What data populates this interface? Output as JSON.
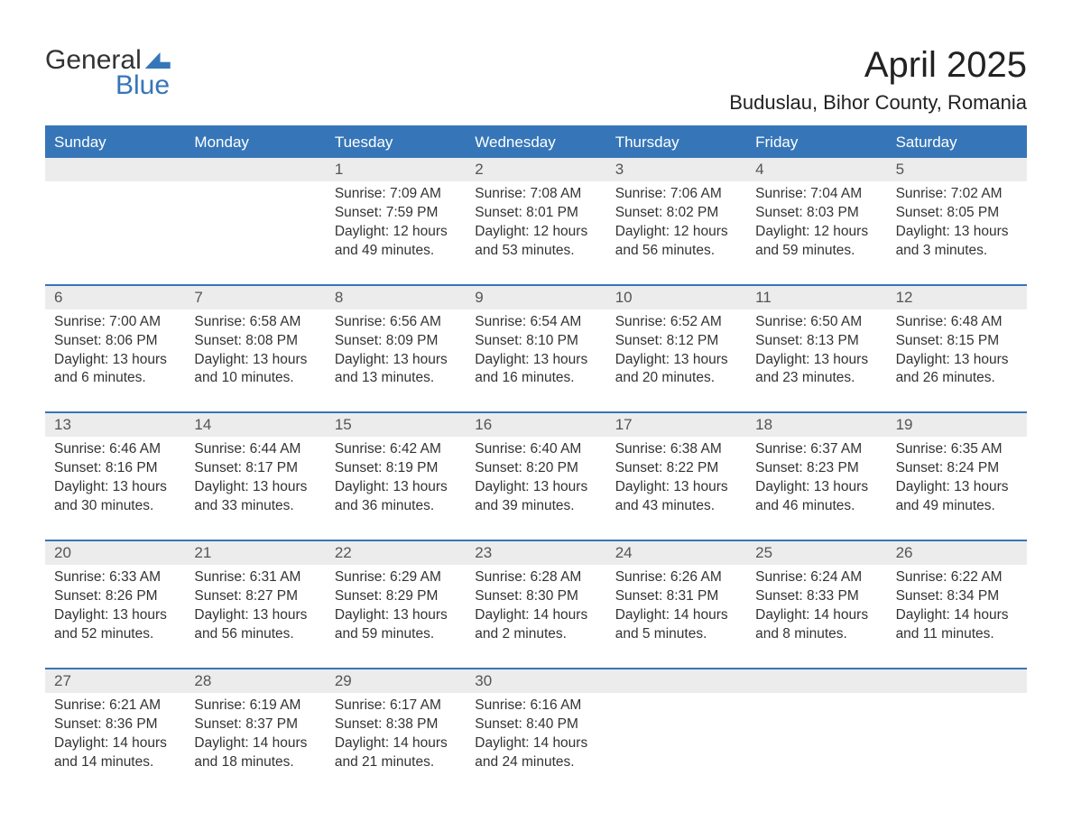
{
  "logo": {
    "word1": "General",
    "word2": "Blue"
  },
  "title": "April 2025",
  "location": "Buduslau, Bihor County, Romania",
  "colors": {
    "header_bg": "#3676b8",
    "header_text": "#ffffff",
    "daynum_bg": "#ececec",
    "body_text": "#333333",
    "page_bg": "#ffffff"
  },
  "fonts": {
    "title_size_pt": 40,
    "location_size_pt": 22,
    "weekday_size_pt": 17,
    "cell_size_pt": 15.5
  },
  "weekdays": [
    "Sunday",
    "Monday",
    "Tuesday",
    "Wednesday",
    "Thursday",
    "Friday",
    "Saturday"
  ],
  "weeks": [
    {
      "days": [
        {
          "num": "",
          "lines": []
        },
        {
          "num": "",
          "lines": []
        },
        {
          "num": "1",
          "lines": [
            "Sunrise: 7:09 AM",
            "Sunset: 7:59 PM",
            "Daylight: 12 hours",
            "and 49 minutes."
          ]
        },
        {
          "num": "2",
          "lines": [
            "Sunrise: 7:08 AM",
            "Sunset: 8:01 PM",
            "Daylight: 12 hours",
            "and 53 minutes."
          ]
        },
        {
          "num": "3",
          "lines": [
            "Sunrise: 7:06 AM",
            "Sunset: 8:02 PM",
            "Daylight: 12 hours",
            "and 56 minutes."
          ]
        },
        {
          "num": "4",
          "lines": [
            "Sunrise: 7:04 AM",
            "Sunset: 8:03 PM",
            "Daylight: 12 hours",
            "and 59 minutes."
          ]
        },
        {
          "num": "5",
          "lines": [
            "Sunrise: 7:02 AM",
            "Sunset: 8:05 PM",
            "Daylight: 13 hours",
            "and 3 minutes."
          ]
        }
      ]
    },
    {
      "days": [
        {
          "num": "6",
          "lines": [
            "Sunrise: 7:00 AM",
            "Sunset: 8:06 PM",
            "Daylight: 13 hours",
            "and 6 minutes."
          ]
        },
        {
          "num": "7",
          "lines": [
            "Sunrise: 6:58 AM",
            "Sunset: 8:08 PM",
            "Daylight: 13 hours",
            "and 10 minutes."
          ]
        },
        {
          "num": "8",
          "lines": [
            "Sunrise: 6:56 AM",
            "Sunset: 8:09 PM",
            "Daylight: 13 hours",
            "and 13 minutes."
          ]
        },
        {
          "num": "9",
          "lines": [
            "Sunrise: 6:54 AM",
            "Sunset: 8:10 PM",
            "Daylight: 13 hours",
            "and 16 minutes."
          ]
        },
        {
          "num": "10",
          "lines": [
            "Sunrise: 6:52 AM",
            "Sunset: 8:12 PM",
            "Daylight: 13 hours",
            "and 20 minutes."
          ]
        },
        {
          "num": "11",
          "lines": [
            "Sunrise: 6:50 AM",
            "Sunset: 8:13 PM",
            "Daylight: 13 hours",
            "and 23 minutes."
          ]
        },
        {
          "num": "12",
          "lines": [
            "Sunrise: 6:48 AM",
            "Sunset: 8:15 PM",
            "Daylight: 13 hours",
            "and 26 minutes."
          ]
        }
      ]
    },
    {
      "days": [
        {
          "num": "13",
          "lines": [
            "Sunrise: 6:46 AM",
            "Sunset: 8:16 PM",
            "Daylight: 13 hours",
            "and 30 minutes."
          ]
        },
        {
          "num": "14",
          "lines": [
            "Sunrise: 6:44 AM",
            "Sunset: 8:17 PM",
            "Daylight: 13 hours",
            "and 33 minutes."
          ]
        },
        {
          "num": "15",
          "lines": [
            "Sunrise: 6:42 AM",
            "Sunset: 8:19 PM",
            "Daylight: 13 hours",
            "and 36 minutes."
          ]
        },
        {
          "num": "16",
          "lines": [
            "Sunrise: 6:40 AM",
            "Sunset: 8:20 PM",
            "Daylight: 13 hours",
            "and 39 minutes."
          ]
        },
        {
          "num": "17",
          "lines": [
            "Sunrise: 6:38 AM",
            "Sunset: 8:22 PM",
            "Daylight: 13 hours",
            "and 43 minutes."
          ]
        },
        {
          "num": "18",
          "lines": [
            "Sunrise: 6:37 AM",
            "Sunset: 8:23 PM",
            "Daylight: 13 hours",
            "and 46 minutes."
          ]
        },
        {
          "num": "19",
          "lines": [
            "Sunrise: 6:35 AM",
            "Sunset: 8:24 PM",
            "Daylight: 13 hours",
            "and 49 minutes."
          ]
        }
      ]
    },
    {
      "days": [
        {
          "num": "20",
          "lines": [
            "Sunrise: 6:33 AM",
            "Sunset: 8:26 PM",
            "Daylight: 13 hours",
            "and 52 minutes."
          ]
        },
        {
          "num": "21",
          "lines": [
            "Sunrise: 6:31 AM",
            "Sunset: 8:27 PM",
            "Daylight: 13 hours",
            "and 56 minutes."
          ]
        },
        {
          "num": "22",
          "lines": [
            "Sunrise: 6:29 AM",
            "Sunset: 8:29 PM",
            "Daylight: 13 hours",
            "and 59 minutes."
          ]
        },
        {
          "num": "23",
          "lines": [
            "Sunrise: 6:28 AM",
            "Sunset: 8:30 PM",
            "Daylight: 14 hours",
            "and 2 minutes."
          ]
        },
        {
          "num": "24",
          "lines": [
            "Sunrise: 6:26 AM",
            "Sunset: 8:31 PM",
            "Daylight: 14 hours",
            "and 5 minutes."
          ]
        },
        {
          "num": "25",
          "lines": [
            "Sunrise: 6:24 AM",
            "Sunset: 8:33 PM",
            "Daylight: 14 hours",
            "and 8 minutes."
          ]
        },
        {
          "num": "26",
          "lines": [
            "Sunrise: 6:22 AM",
            "Sunset: 8:34 PM",
            "Daylight: 14 hours",
            "and 11 minutes."
          ]
        }
      ]
    },
    {
      "days": [
        {
          "num": "27",
          "lines": [
            "Sunrise: 6:21 AM",
            "Sunset: 8:36 PM",
            "Daylight: 14 hours",
            "and 14 minutes."
          ]
        },
        {
          "num": "28",
          "lines": [
            "Sunrise: 6:19 AM",
            "Sunset: 8:37 PM",
            "Daylight: 14 hours",
            "and 18 minutes."
          ]
        },
        {
          "num": "29",
          "lines": [
            "Sunrise: 6:17 AM",
            "Sunset: 8:38 PM",
            "Daylight: 14 hours",
            "and 21 minutes."
          ]
        },
        {
          "num": "30",
          "lines": [
            "Sunrise: 6:16 AM",
            "Sunset: 8:40 PM",
            "Daylight: 14 hours",
            "and 24 minutes."
          ]
        },
        {
          "num": "",
          "lines": []
        },
        {
          "num": "",
          "lines": []
        },
        {
          "num": "",
          "lines": []
        }
      ]
    }
  ]
}
